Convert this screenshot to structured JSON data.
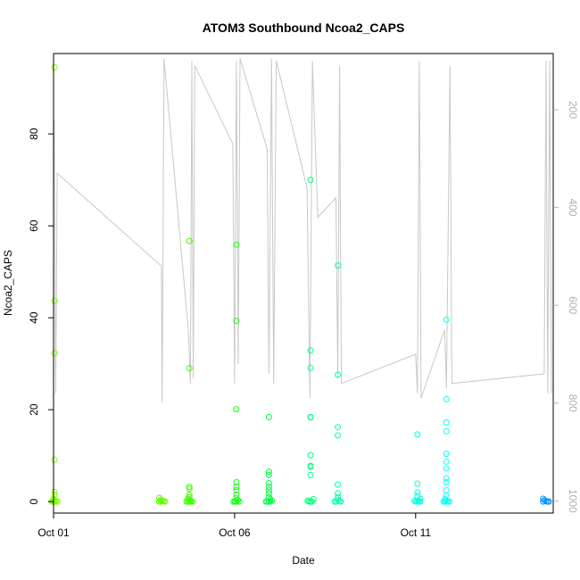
{
  "chart_data": {
    "type": "scatter",
    "title": "ATOM3 Southbound Ncoa2_CAPS",
    "xlabel": "Date",
    "ylabel": "Ncoa2_CAPS",
    "x_ticks": [
      "Oct 01",
      "Oct 06",
      "Oct 11"
    ],
    "y_ticks": [
      "0",
      "20",
      "40",
      "60",
      "80"
    ],
    "y2_ticks": [
      "200",
      "400",
      "600",
      "800",
      "1000"
    ],
    "xlim_days": [
      0,
      13.8
    ],
    "ylim": [
      -2.5,
      97.5
    ],
    "y2lim": [
      1025,
      85
    ],
    "y2_reversed": true,
    "grid": false,
    "colors": {
      "points_gradient": [
        "#80ff00",
        "#00ff00",
        "#00ffaa",
        "#00ffff",
        "#0080ff"
      ],
      "depth_trace": "#c8c8c8",
      "right_axis": "#b0b0b0"
    },
    "point_groups": [
      {
        "x": 0.03,
        "color": "#7fff00",
        "values": [
          94.5,
          43.7,
          32.3,
          9.1,
          2.1,
          1.5,
          0.6,
          0.3,
          0.1,
          0,
          0,
          0,
          0
        ]
      },
      {
        "x": 3.0,
        "color": "#5cff00",
        "values": [
          0.8,
          0.4,
          0.2,
          0.1,
          0,
          0,
          0
        ]
      },
      {
        "x": 3.75,
        "color": "#38ff00",
        "values": [
          56.7,
          29.0,
          3.2,
          2.8,
          1.5,
          1.0,
          0.6,
          0.3,
          0.1,
          0,
          0,
          0,
          0,
          0
        ]
      },
      {
        "x": 5.05,
        "color": "#10ff10",
        "values": [
          55.9,
          39.3,
          20.1,
          4.2,
          3.2,
          2.5,
          1.5,
          0.8,
          0.3,
          0,
          0,
          0,
          0
        ]
      },
      {
        "x": 5.95,
        "color": "#00ff40",
        "values": [
          18.4,
          6.5,
          5.8,
          4.0,
          3.2,
          2.5,
          1.8,
          1.0,
          0.5,
          0.2,
          0,
          0,
          0,
          0
        ]
      },
      {
        "x": 7.1,
        "color": "#00ff80",
        "values": [
          70.0,
          32.9,
          29.1,
          18.4,
          18.3,
          10.1,
          7.8,
          7.6,
          5.8,
          0.5,
          0.2,
          0,
          0,
          0
        ]
      },
      {
        "x": 7.85,
        "color": "#00ffaa",
        "values": [
          51.4,
          27.6,
          16.2,
          14.4,
          3.7,
          1.8,
          1.0,
          0.4,
          0.1,
          0,
          0,
          0
        ]
      },
      {
        "x": 10.05,
        "color": "#00ffdd",
        "values": [
          14.6,
          3.9,
          2.0,
          1.2,
          0.6,
          0.2,
          0,
          0,
          0,
          0
        ]
      },
      {
        "x": 10.85,
        "color": "#00ffff",
        "values": [
          39.6,
          22.3,
          17.2,
          15.3,
          10.4,
          8.7,
          7.2,
          5.1,
          4.2,
          2.5,
          1.3,
          0.5,
          0.1,
          0,
          0,
          0,
          0
        ]
      },
      {
        "x": 13.6,
        "color": "#0090ff",
        "values": [
          0.6,
          0.3,
          0.1,
          0,
          0,
          0
        ]
      }
    ],
    "depth_trace_depth_m": [
      [
        0.02,
        220
      ],
      [
        0.06,
        780
      ],
      [
        0.08,
        580
      ],
      [
        0.1,
        330
      ],
      [
        2.98,
        520
      ],
      [
        3.0,
        800
      ],
      [
        3.02,
        520
      ],
      [
        3.05,
        95
      ],
      [
        3.72,
        650
      ],
      [
        3.78,
        760
      ],
      [
        3.82,
        100
      ],
      [
        3.86,
        750
      ],
      [
        3.9,
        110
      ],
      [
        4.95,
        270
      ],
      [
        5.0,
        760
      ],
      [
        5.05,
        100
      ],
      [
        5.1,
        720
      ],
      [
        5.15,
        95
      ],
      [
        5.9,
        280
      ],
      [
        5.95,
        740
      ],
      [
        6.02,
        95
      ],
      [
        6.08,
        760
      ],
      [
        6.15,
        100
      ],
      [
        7.0,
        360
      ],
      [
        7.08,
        790
      ],
      [
        7.15,
        100
      ],
      [
        7.3,
        420
      ],
      [
        7.8,
        380
      ],
      [
        7.85,
        750
      ],
      [
        7.9,
        110
      ],
      [
        7.95,
        760
      ],
      [
        10.0,
        700
      ],
      [
        10.05,
        780
      ],
      [
        10.1,
        100
      ],
      [
        10.15,
        790
      ],
      [
        10.8,
        650
      ],
      [
        10.85,
        770
      ],
      [
        10.95,
        110
      ],
      [
        11.0,
        760
      ],
      [
        13.55,
        740
      ],
      [
        13.6,
        100
      ],
      [
        13.65,
        780
      ],
      [
        13.7,
        100
      ],
      [
        13.75,
        780
      ]
    ]
  }
}
